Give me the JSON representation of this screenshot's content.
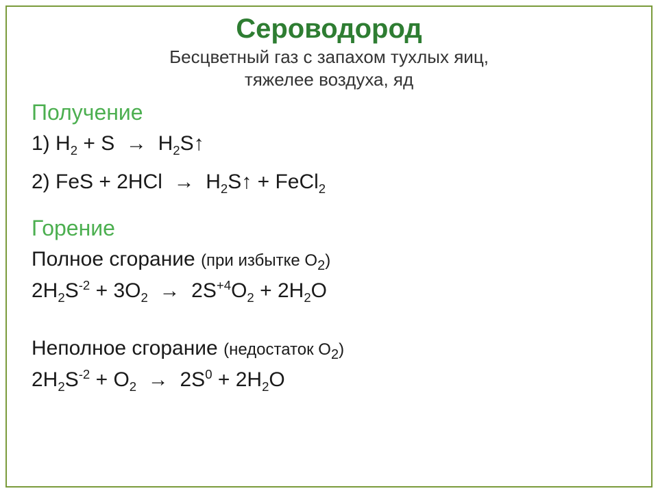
{
  "title": "Сероводород",
  "subtitle_line1": "Бесцветный газ с запахом тухлых яиц,",
  "subtitle_line2": "тяжелее воздуха, яд",
  "sections": {
    "preparation": {
      "label": "Получение"
    },
    "combustion": {
      "label": "Горение"
    }
  },
  "combustion_full_label": "Полное сгорание",
  "combustion_full_note": "(при избытке О",
  "combustion_partial_label": "Неполное сгорание",
  "combustion_partial_note": "(недостаток О",
  "colors": {
    "title": "#2e7d32",
    "section": "#4caf50",
    "text": "#1a1a1a",
    "frame": "#7a9a3a",
    "background": "#ffffff"
  }
}
